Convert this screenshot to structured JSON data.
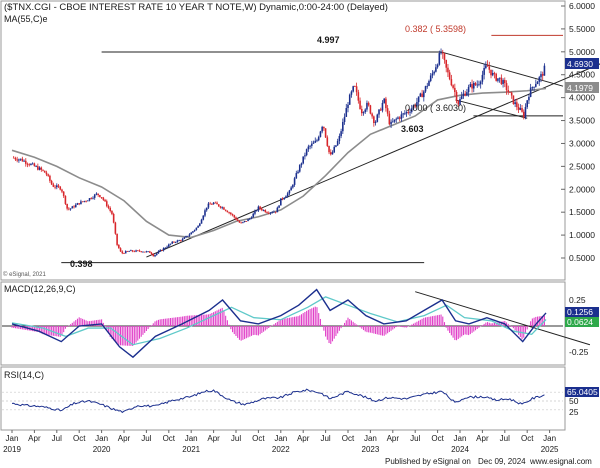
{
  "header": {
    "title": "($TNX.CGI - CBOE INTEREST RATE 10 YEAR T NOTE,W) Dynamic,0:00-24:00 (Delayed)",
    "ma_label": "MA(55,C)e"
  },
  "colors": {
    "up_candle": "#1b2f8e",
    "down_candle": "#d8262b",
    "ma_line": "#8c8c8c",
    "macd_line": "#1b2f8e",
    "signal_line": "#5fc9c9",
    "histogram": "#e040c8",
    "rsi_line": "#1b2f8e",
    "fib_line": "#c0392b",
    "trend_line": "#222222",
    "price_badge": "#1b2f8e",
    "ma_badge": "#8c8c8c",
    "macd_badge": "#2ea84a"
  },
  "chart_data": [
    {
      "type": "candlestick",
      "title": "($TNX.CGI - CBOE INTEREST RATE 10 YEAR T NOTE,W) Dynamic,0:00-24:00 (Delayed)",
      "ylim": [
        0,
        6
      ],
      "y_ticks": [
        "6.0000",
        "5.5000",
        "5.0000",
        "4.5000",
        "4.0000",
        "3.5000",
        "3.0000",
        "2.5000",
        "2.0000",
        "1.5000",
        "1.0000",
        "0.5000"
      ],
      "x_axis_months": [
        "Jan",
        "Apr",
        "Jul",
        "Oct",
        "Jan",
        "Apr",
        "Jul",
        "Oct",
        "Jan",
        "Apr",
        "Jul",
        "Oct",
        "Jan",
        "Apr",
        "Jul",
        "Oct",
        "Jan",
        "Apr",
        "Jul",
        "Oct",
        "Jan",
        "Apr",
        "Jul",
        "Oct",
        "Jan"
      ],
      "x_axis_years": [
        "2019",
        "2020",
        "2021",
        "2022",
        "2023",
        "2024",
        "2025"
      ],
      "close_path": [
        [
          2019.0,
          2.69
        ],
        [
          2019.1,
          2.65
        ],
        [
          2019.2,
          2.55
        ],
        [
          2019.3,
          2.45
        ],
        [
          2019.38,
          2.35
        ],
        [
          2019.45,
          2.08
        ],
        [
          2019.55,
          2.02
        ],
        [
          2019.62,
          1.55
        ],
        [
          2019.67,
          1.6
        ],
        [
          2019.75,
          1.7
        ],
        [
          2019.85,
          1.78
        ],
        [
          2019.95,
          1.9
        ],
        [
          2020.0,
          1.83
        ],
        [
          2020.05,
          1.68
        ],
        [
          2020.12,
          1.45
        ],
        [
          2020.17,
          0.8
        ],
        [
          2020.22,
          0.6
        ],
        [
          2020.3,
          0.65
        ],
        [
          2020.45,
          0.65
        ],
        [
          2020.55,
          0.62
        ],
        [
          2020.58,
          0.55
        ],
        [
          2020.67,
          0.68
        ],
        [
          2020.8,
          0.85
        ],
        [
          2020.9,
          0.9
        ],
        [
          2021.0,
          1.05
        ],
        [
          2021.08,
          1.2
        ],
        [
          2021.18,
          1.65
        ],
        [
          2021.25,
          1.7
        ],
        [
          2021.35,
          1.6
        ],
        [
          2021.45,
          1.45
        ],
        [
          2021.55,
          1.25
        ],
        [
          2021.65,
          1.35
        ],
        [
          2021.75,
          1.6
        ],
        [
          2021.85,
          1.5
        ],
        [
          2021.95,
          1.52
        ],
        [
          2022.0,
          1.77
        ],
        [
          2022.1,
          1.95
        ],
        [
          2022.2,
          2.45
        ],
        [
          2022.3,
          2.9
        ],
        [
          2022.4,
          3.05
        ],
        [
          2022.47,
          3.45
        ],
        [
          2022.55,
          2.7
        ],
        [
          2022.65,
          3.1
        ],
        [
          2022.75,
          3.9
        ],
        [
          2022.82,
          4.25
        ],
        [
          2022.9,
          3.7
        ],
        [
          2022.97,
          3.85
        ],
        [
          2023.05,
          3.45
        ],
        [
          2023.15,
          3.95
        ],
        [
          2023.22,
          3.4
        ],
        [
          2023.3,
          3.55
        ],
        [
          2023.42,
          3.7
        ],
        [
          2023.5,
          3.85
        ],
        [
          2023.6,
          4.15
        ],
        [
          2023.7,
          4.55
        ],
        [
          2023.79,
          4.997
        ],
        [
          2023.85,
          4.6
        ],
        [
          2023.93,
          4.2
        ],
        [
          2023.98,
          3.88
        ],
        [
          2024.03,
          4.05
        ],
        [
          2024.12,
          4.25
        ],
        [
          2024.2,
          4.3
        ],
        [
          2024.3,
          4.7
        ],
        [
          2024.38,
          4.45
        ],
        [
          2024.45,
          4.4
        ],
        [
          2024.52,
          4.2
        ],
        [
          2024.6,
          3.9
        ],
        [
          2024.68,
          3.7
        ],
        [
          2024.71,
          3.603
        ],
        [
          2024.76,
          4.05
        ],
        [
          2024.82,
          4.28
        ],
        [
          2024.9,
          4.45
        ],
        [
          2024.96,
          4.69
        ]
      ],
      "ma55_path": [
        [
          2019.0,
          2.85
        ],
        [
          2019.25,
          2.7
        ],
        [
          2019.5,
          2.5
        ],
        [
          2019.75,
          2.25
        ],
        [
          2020.0,
          2.05
        ],
        [
          2020.25,
          1.75
        ],
        [
          2020.5,
          1.3
        ],
        [
          2020.75,
          1.0
        ],
        [
          2021.0,
          0.95
        ],
        [
          2021.25,
          1.1
        ],
        [
          2021.5,
          1.3
        ],
        [
          2021.75,
          1.4
        ],
        [
          2022.0,
          1.55
        ],
        [
          2022.25,
          1.85
        ],
        [
          2022.5,
          2.3
        ],
        [
          2022.75,
          2.8
        ],
        [
          2023.0,
          3.2
        ],
        [
          2023.25,
          3.4
        ],
        [
          2023.5,
          3.6
        ],
        [
          2023.75,
          3.95
        ],
        [
          2024.0,
          4.05
        ],
        [
          2024.25,
          4.1
        ],
        [
          2024.5,
          4.12
        ],
        [
          2024.75,
          4.15
        ],
        [
          2024.96,
          4.2
        ]
      ],
      "annotations": {
        "high_label": "4.997",
        "low_label": "0.398",
        "swing_low_label": "3.603",
        "fib_382_label": "0.382 ( 5.3598)",
        "fib_0_label": "0.000 ( 3.6030)",
        "last_price": "4.6930",
        "ma_value": "4.1979",
        "watermark": "© eSignal, 2021"
      }
    },
    {
      "type": "line",
      "title": "MACD(12,26,9,C)",
      "ylim": [
        -0.4,
        0.4
      ],
      "y_ticks": [
        "0.25",
        "-0.25"
      ],
      "badges": [
        "0.1256",
        "0.0624"
      ],
      "macd_path": [
        [
          2019.0,
          0.02
        ],
        [
          2019.3,
          -0.05
        ],
        [
          2019.55,
          -0.15
        ],
        [
          2019.75,
          0.0
        ],
        [
          2020.0,
          0.02
        ],
        [
          2020.2,
          -0.2
        ],
        [
          2020.35,
          -0.3
        ],
        [
          2020.6,
          -0.1
        ],
        [
          2020.9,
          0.02
        ],
        [
          2021.2,
          0.15
        ],
        [
          2021.35,
          0.25
        ],
        [
          2021.55,
          0.05
        ],
        [
          2021.75,
          0.02
        ],
        [
          2022.0,
          0.1
        ],
        [
          2022.2,
          0.2
        ],
        [
          2022.4,
          0.35
        ],
        [
          2022.55,
          0.15
        ],
        [
          2022.75,
          0.25
        ],
        [
          2022.95,
          0.1
        ],
        [
          2023.15,
          0.02
        ],
        [
          2023.4,
          0.05
        ],
        [
          2023.6,
          0.15
        ],
        [
          2023.8,
          0.25
        ],
        [
          2023.95,
          0.05
        ],
        [
          2024.1,
          0.02
        ],
        [
          2024.3,
          0.08
        ],
        [
          2024.5,
          0.02
        ],
        [
          2024.7,
          -0.15
        ],
        [
          2024.85,
          0.02
        ],
        [
          2024.96,
          0.1256
        ]
      ],
      "signal_path": [
        [
          2019.0,
          0.03
        ],
        [
          2019.35,
          -0.02
        ],
        [
          2019.6,
          -0.1
        ],
        [
          2019.85,
          -0.02
        ],
        [
          2020.1,
          -0.02
        ],
        [
          2020.35,
          -0.18
        ],
        [
          2020.65,
          -0.12
        ],
        [
          2020.95,
          -0.02
        ],
        [
          2021.25,
          0.1
        ],
        [
          2021.45,
          0.18
        ],
        [
          2021.7,
          0.08
        ],
        [
          2022.0,
          0.06
        ],
        [
          2022.3,
          0.18
        ],
        [
          2022.5,
          0.28
        ],
        [
          2022.75,
          0.2
        ],
        [
          2023.0,
          0.12
        ],
        [
          2023.3,
          0.04
        ],
        [
          2023.6,
          0.1
        ],
        [
          2023.85,
          0.2
        ],
        [
          2024.05,
          0.08
        ],
        [
          2024.35,
          0.05
        ],
        [
          2024.6,
          -0.05
        ],
        [
          2024.8,
          -0.08
        ],
        [
          2024.96,
          0.0624
        ]
      ]
    },
    {
      "type": "line",
      "title": "RSI(14,C)",
      "ylim": [
        0,
        100
      ],
      "y_ticks": [
        "50",
        "25"
      ],
      "badges": [
        "65.0405"
      ],
      "rsi_path": [
        [
          2019.0,
          45
        ],
        [
          2019.15,
          40
        ],
        [
          2019.3,
          38
        ],
        [
          2019.45,
          33
        ],
        [
          2019.55,
          28
        ],
        [
          2019.7,
          45
        ],
        [
          2019.85,
          50
        ],
        [
          2020.0,
          42
        ],
        [
          2020.15,
          30
        ],
        [
          2020.25,
          25
        ],
        [
          2020.4,
          40
        ],
        [
          2020.6,
          38
        ],
        [
          2020.8,
          52
        ],
        [
          2021.0,
          60
        ],
        [
          2021.15,
          72
        ],
        [
          2021.25,
          74
        ],
        [
          2021.45,
          50
        ],
        [
          2021.6,
          42
        ],
        [
          2021.8,
          55
        ],
        [
          2022.0,
          58
        ],
        [
          2022.15,
          70
        ],
        [
          2022.3,
          75
        ],
        [
          2022.45,
          68
        ],
        [
          2022.55,
          55
        ],
        [
          2022.75,
          72
        ],
        [
          2022.9,
          62
        ],
        [
          2023.05,
          50
        ],
        [
          2023.2,
          58
        ],
        [
          2023.4,
          55
        ],
        [
          2023.6,
          65
        ],
        [
          2023.8,
          72
        ],
        [
          2023.95,
          45
        ],
        [
          2024.05,
          58
        ],
        [
          2024.25,
          60
        ],
        [
          2024.4,
          52
        ],
        [
          2024.55,
          55
        ],
        [
          2024.7,
          42
        ],
        [
          2024.8,
          55
        ],
        [
          2024.96,
          65
        ]
      ]
    }
  ],
  "footer": {
    "published_by": "Published by eSignal on",
    "published_date": "Dec 09, 2024",
    "site": "www.esignal.com"
  }
}
